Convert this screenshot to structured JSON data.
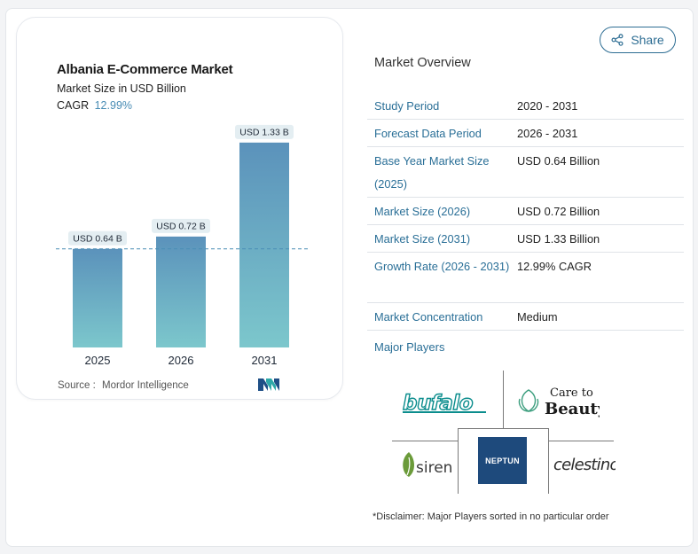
{
  "share": {
    "label": "Share"
  },
  "chart": {
    "title": "Albania E-Commerce Market",
    "subtitle": "Market Size in USD Billion",
    "cagr_label": "CAGR",
    "cagr_value": "12.99%",
    "source_label": "Source :",
    "source_value": "Mordor Intelligence"
  },
  "chart_data": {
    "type": "bar",
    "categories": [
      "2025",
      "2026",
      "2031"
    ],
    "values": [
      0.64,
      0.72,
      1.33
    ],
    "data_labels": [
      "USD 0.64 B",
      "USD 0.72 B",
      "USD 1.33 B"
    ],
    "title": "Albania E-Commerce Market",
    "ylabel": "Market Size in USD Billion",
    "reference_line": 0.64,
    "ylim": [
      0,
      1.45
    ],
    "grid": false,
    "colors": {
      "bar_top": "#5b92bb",
      "bar_bottom": "#7cc7cc",
      "label_bg": "#e4eef2"
    }
  },
  "overview": {
    "title": "Market Overview",
    "rows": [
      {
        "key": "Study Period",
        "value": "2020 - 2031"
      },
      {
        "key": "Forecast Data Period",
        "value": "2026 - 2031"
      },
      {
        "key": "Base Year Market Size (2025)",
        "value": "USD 0.64 Billion"
      },
      {
        "key": "Market Size (2026)",
        "value": "USD 0.72 Billion"
      },
      {
        "key": "Market Size (2031)",
        "value": "USD 1.33 Billion"
      },
      {
        "key": "Growth Rate (2026 - 2031)",
        "value": "12.99% CAGR"
      },
      {
        "key": "Market Concentration",
        "value": "Medium"
      }
    ]
  },
  "players": {
    "label": "Major Players",
    "logos": {
      "bufalo": "bufalo",
      "care_line1": "Care to",
      "care_line2": "Beauty",
      "siren": "siren",
      "neptun": "NEPTUN",
      "celestino": "celestino"
    }
  },
  "disclaimer": "*Disclaimer: Major Players sorted in no particular order",
  "colors": {
    "accent": "#2a6f97",
    "share_border": "#2d6d93",
    "neptun_bg": "#1e4a7c"
  }
}
